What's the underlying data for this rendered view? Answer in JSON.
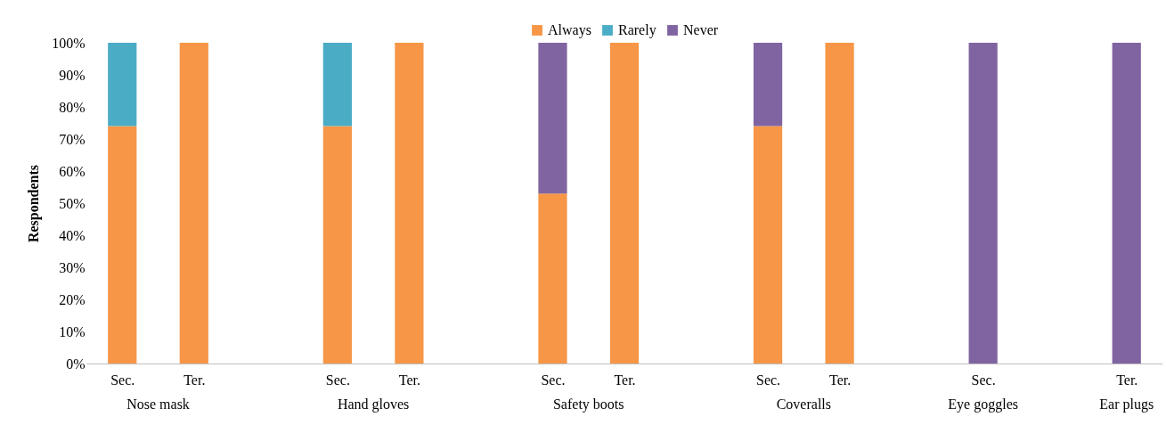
{
  "chart_data": {
    "type": "bar",
    "stacked": true,
    "ylabel": "Respondents",
    "legend": "top",
    "grid": false,
    "categories": [
      "Sec.",
      "Ter.",
      null,
      "Sec.",
      "Ter.",
      null,
      "Sec.",
      "Ter.",
      null,
      "Sec.",
      "Ter.",
      null,
      "Sec.",
      null,
      "Ter."
    ],
    "series": [
      {
        "name": "Always",
        "color": "#f79646",
        "values": [
          74,
          100,
          null,
          74,
          100,
          null,
          53,
          100,
          null,
          74,
          100,
          null,
          null,
          null,
          null
        ]
      },
      {
        "name": "Rarely",
        "color": "#4bacc6",
        "values": [
          26,
          null,
          null,
          26,
          null,
          null,
          null,
          null,
          null,
          null,
          null,
          null,
          null,
          null,
          null
        ]
      },
      {
        "name": "Never",
        "color": "#8064a2",
        "values": [
          null,
          null,
          null,
          null,
          null,
          null,
          47,
          null,
          null,
          26,
          null,
          null,
          100,
          null,
          100
        ]
      }
    ],
    "ylim": [
      0,
      100
    ],
    "yticks": [
      {
        "value": 0,
        "label": "0%"
      },
      {
        "value": 10,
        "label": "10%"
      },
      {
        "value": 20,
        "label": "20%"
      },
      {
        "value": 30,
        "label": "30%"
      },
      {
        "value": 40,
        "label": "40%"
      },
      {
        "value": 50,
        "label": "50%"
      },
      {
        "value": 60,
        "label": "60%"
      },
      {
        "value": 70,
        "label": "70%"
      },
      {
        "value": 80,
        "label": "80%"
      },
      {
        "value": 90,
        "label": "90%"
      },
      {
        "value": 100,
        "label": "100%"
      }
    ],
    "annotations": [
      "Nose mask",
      "Hand gloves",
      "Safety boots",
      "Coveralls",
      "Eye goggles",
      "Ear plugs"
    ]
  }
}
